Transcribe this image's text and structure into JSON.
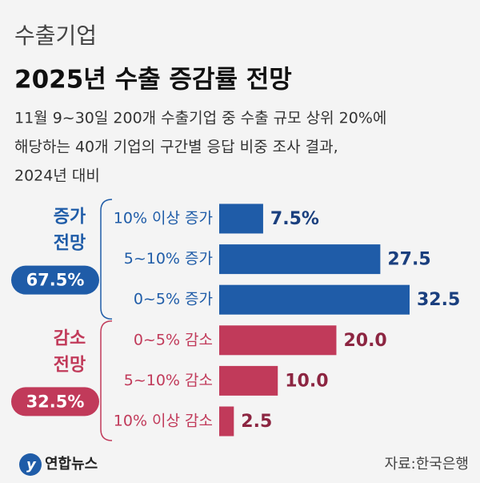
{
  "chart_data": {
    "type": "bar",
    "orientation": "horizontal",
    "supertitle": "수출기업",
    "title": "2025년 수출 증감률 전망",
    "subtitle": [
      "11월 9~30일 200개 수출기업 중 수출 규모 상위 20%에",
      "해당하는 40개 기업의 구간별 응답 비중 조사 결과,",
      "2024년 대비"
    ],
    "groups": [
      {
        "name": [
          "증가",
          "전망"
        ],
        "share": {
          "value": 67.5,
          "label": "67.5%"
        },
        "color": "#1f5ca8",
        "label_color": "#1a3f7e",
        "categories": [
          "10% 이상 증가",
          "5~10% 증가",
          "0~5% 증가"
        ],
        "values": [
          7.5,
          27.5,
          32.5
        ],
        "value_labels": [
          "7.5%",
          "27.5",
          "32.5"
        ]
      },
      {
        "name": [
          "감소",
          "전망"
        ],
        "share": {
          "value": 32.5,
          "label": "32.5%"
        },
        "color": "#c13a5a",
        "label_color": "#8c2541",
        "categories": [
          "0~5% 감소",
          "5~10% 감소",
          "10% 이상 감소"
        ],
        "values": [
          20.0,
          10.0,
          2.5
        ],
        "value_labels": [
          "20.0",
          "10.0",
          "2.5"
        ]
      }
    ],
    "logo": "연합뉴스",
    "source": "자료:한국은행"
  }
}
